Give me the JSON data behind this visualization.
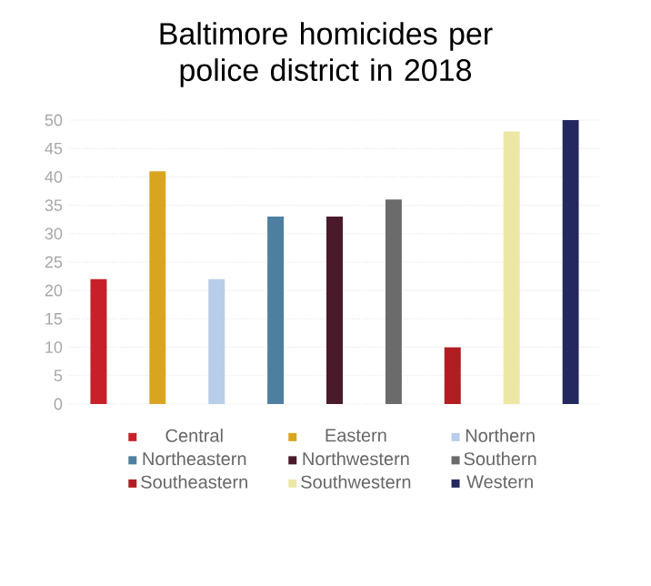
{
  "chart_data": {
    "type": "bar",
    "title": "Baltimore homicides per police district in 2018",
    "categories": [
      null,
      null,
      null,
      null,
      null,
      null,
      null,
      null,
      null
    ],
    "series": [
      {
        "name": "Central",
        "color": "#c8202a",
        "values": [
          22,
          null,
          null,
          null,
          null,
          null,
          null,
          null,
          null
        ]
      },
      {
        "name": "Eastern",
        "color": "#d9a520",
        "values": [
          null,
          41,
          null,
          null,
          null,
          null,
          null,
          null,
          null
        ]
      },
      {
        "name": "Northern",
        "color": "#b8cde8",
        "values": [
          null,
          null,
          22,
          null,
          null,
          null,
          null,
          null,
          null
        ]
      },
      {
        "name": "Northeastern",
        "color": "#4f7f9f",
        "values": [
          null,
          null,
          null,
          33,
          null,
          null,
          null,
          null,
          null
        ]
      },
      {
        "name": "Northwestern",
        "color": "#4a1a2c",
        "values": [
          null,
          null,
          null,
          null,
          33,
          null,
          null,
          null,
          null
        ]
      },
      {
        "name": "Southern",
        "color": "#6b6b6b",
        "values": [
          null,
          null,
          null,
          null,
          null,
          36,
          null,
          null,
          null
        ]
      },
      {
        "name": "Southeastern",
        "color": "#b01e22",
        "values": [
          null,
          null,
          null,
          null,
          null,
          null,
          10,
          null,
          null
        ]
      },
      {
        "name": "Southwestern",
        "color": "#ede7a6",
        "values": [
          null,
          null,
          null,
          null,
          null,
          null,
          null,
          48,
          null
        ]
      },
      {
        "name": "Western",
        "color": "#23295e",
        "values": [
          null,
          null,
          null,
          null,
          null,
          null,
          null,
          null,
          50
        ]
      }
    ],
    "ylim": [
      0,
      50
    ],
    "yticks": [
      0,
      5,
      10,
      15,
      20,
      25,
      30,
      35,
      40,
      45,
      50
    ],
    "grid": "y",
    "legend": "bottom",
    "tick_labels": "y"
  }
}
